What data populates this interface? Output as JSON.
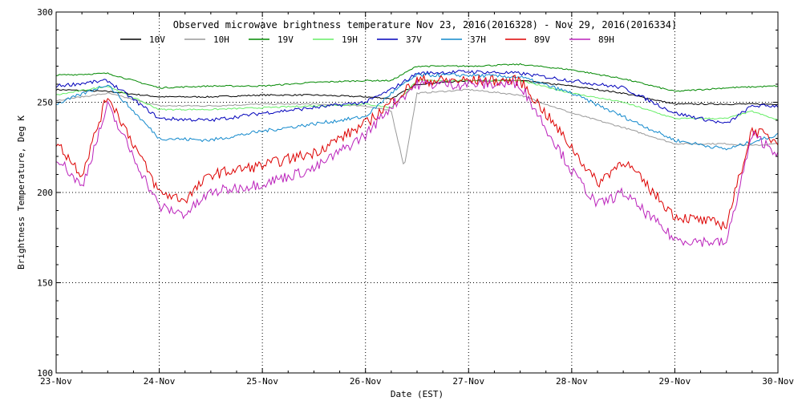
{
  "chart_data": {
    "type": "line",
    "title": "Observed microwave brightness temperature Nov 23, 2016(2016328) - Nov 29, 2016(2016334)",
    "xlabel": "Date (EST)",
    "ylabel": "Brightness Temperature, Deg K",
    "x_tick_labels": [
      "23-Nov",
      "24-Nov",
      "25-Nov",
      "26-Nov",
      "27-Nov",
      "28-Nov",
      "29-Nov",
      "30-Nov"
    ],
    "y_ticks": [
      100,
      150,
      200,
      250,
      300
    ],
    "ylim": [
      100,
      300
    ],
    "grid": true,
    "legend_position": "top",
    "series": [
      {
        "name": "10V",
        "color": "#000000",
        "x": [
          "23-Nov 00:00",
          "23-Nov 12:00",
          "24-Nov 00:00",
          "24-Nov 12:00",
          "25-Nov 00:00",
          "25-Nov 12:00",
          "26-Nov 00:00",
          "26-Nov 06:00",
          "26-Nov 12:00",
          "27-Nov 00:00",
          "27-Nov 12:00",
          "28-Nov 00:00",
          "28-Nov 12:00",
          "29-Nov 00:00",
          "29-Nov 12:00",
          "29-Nov 18:00",
          "30-Nov 00:00"
        ],
        "y": [
          257,
          256,
          253,
          253,
          254,
          254,
          253,
          252,
          260,
          262,
          262,
          259,
          255,
          249,
          249,
          249,
          249
        ]
      },
      {
        "name": "10H",
        "color": "#999999",
        "x": [
          "23-Nov 00:00",
          "23-Nov 12:00",
          "24-Nov 00:00",
          "24-Nov 12:00",
          "25-Nov 00:00",
          "25-Nov 12:00",
          "26-Nov 00:00",
          "26-Nov 06:00",
          "26-Nov 09:00",
          "26-Nov 12:00",
          "27-Nov 00:00",
          "27-Nov 12:00",
          "28-Nov 00:00",
          "28-Nov 12:00",
          "29-Nov 00:00",
          "29-Nov 12:00",
          "29-Nov 18:00",
          "30-Nov 00:00"
        ],
        "y": [
          251,
          255,
          248,
          248,
          249,
          249,
          248,
          245,
          214,
          255,
          257,
          254,
          244,
          236,
          227,
          227,
          226,
          227
        ]
      },
      {
        "name": "19V",
        "color": "#008800",
        "x": [
          "23-Nov 00:00",
          "23-Nov 12:00",
          "24-Nov 00:00",
          "24-Nov 12:00",
          "25-Nov 00:00",
          "25-Nov 12:00",
          "26-Nov 00:00",
          "26-Nov 06:00",
          "26-Nov 12:00",
          "27-Nov 00:00",
          "27-Nov 12:00",
          "28-Nov 00:00",
          "28-Nov 12:00",
          "29-Nov 00:00",
          "29-Nov 12:00",
          "30-Nov 00:00"
        ],
        "y": [
          265,
          266,
          258,
          259,
          259,
          261,
          262,
          262,
          270,
          270,
          271,
          268,
          263,
          256,
          258,
          259
        ]
      },
      {
        "name": "19H",
        "color": "#66ee66",
        "x": [
          "23-Nov 00:00",
          "23-Nov 12:00",
          "24-Nov 00:00",
          "24-Nov 12:00",
          "25-Nov 00:00",
          "25-Nov 12:00",
          "26-Nov 00:00",
          "26-Nov 06:00",
          "26-Nov 12:00",
          "27-Nov 00:00",
          "27-Nov 12:00",
          "28-Nov 00:00",
          "28-Nov 12:00",
          "29-Nov 00:00",
          "29-Nov 12:00",
          "29-Nov 18:00",
          "30-Nov 00:00"
        ],
        "y": [
          254,
          259,
          246,
          246,
          247,
          248,
          249,
          247,
          262,
          262,
          262,
          255,
          250,
          241,
          241,
          245,
          240
        ]
      },
      {
        "name": "37V",
        "color": "#0000bb",
        "x": [
          "23-Nov 00:00",
          "23-Nov 12:00",
          "24-Nov 00:00",
          "24-Nov 12:00",
          "25-Nov 00:00",
          "25-Nov 12:00",
          "26-Nov 00:00",
          "26-Nov 06:00",
          "26-Nov 12:00",
          "27-Nov 00:00",
          "27-Nov 12:00",
          "28-Nov 00:00",
          "28-Nov 12:00",
          "29-Nov 00:00",
          "29-Nov 12:00",
          "29-Nov 18:00",
          "30-Nov 00:00"
        ],
        "y": [
          259,
          262,
          241,
          240,
          244,
          247,
          250,
          257,
          266,
          267,
          266,
          262,
          258,
          244,
          238,
          248,
          248
        ]
      },
      {
        "name": "37H",
        "color": "#1188cc",
        "x": [
          "23-Nov 00:00",
          "23-Nov 12:00",
          "24-Nov 00:00",
          "24-Nov 12:00",
          "25-Nov 00:00",
          "25-Nov 12:00",
          "26-Nov 00:00",
          "26-Nov 06:00",
          "26-Nov 12:00",
          "27-Nov 00:00",
          "27-Nov 12:00",
          "28-Nov 00:00",
          "28-Nov 12:00",
          "29-Nov 00:00",
          "29-Nov 12:00",
          "29-Nov 18:00",
          "30-Nov 00:00"
        ],
        "y": [
          249,
          260,
          230,
          229,
          234,
          238,
          242,
          255,
          265,
          265,
          264,
          255,
          242,
          229,
          224,
          228,
          232
        ]
      },
      {
        "name": "89V",
        "color": "#dd0000",
        "x": [
          "23-Nov 00:00",
          "23-Nov 06:00",
          "23-Nov 12:00",
          "24-Nov 00:00",
          "24-Nov 06:00",
          "24-Nov 12:00",
          "25-Nov 00:00",
          "25-Nov 12:00",
          "26-Nov 00:00",
          "26-Nov 06:00",
          "26-Nov 12:00",
          "27-Nov 00:00",
          "27-Nov 12:00",
          "28-Nov 00:00",
          "28-Nov 06:00",
          "28-Nov 12:00",
          "29-Nov 00:00",
          "29-Nov 12:00",
          "29-Nov 18:00",
          "30-Nov 00:00"
        ],
        "y": [
          228,
          210,
          254,
          200,
          196,
          210,
          215,
          222,
          238,
          250,
          262,
          262,
          262,
          225,
          205,
          218,
          187,
          182,
          235,
          228
        ]
      },
      {
        "name": "89H",
        "color": "#bb22bb",
        "x": [
          "23-Nov 00:00",
          "23-Nov 06:00",
          "23-Nov 12:00",
          "24-Nov 00:00",
          "24-Nov 06:00",
          "24-Nov 12:00",
          "25-Nov 00:00",
          "25-Nov 12:00",
          "26-Nov 00:00",
          "26-Nov 06:00",
          "26-Nov 12:00",
          "27-Nov 00:00",
          "27-Nov 12:00",
          "28-Nov 00:00",
          "28-Nov 06:00",
          "28-Nov 12:00",
          "29-Nov 00:00",
          "29-Nov 12:00",
          "29-Nov 18:00",
          "30-Nov 00:00"
        ],
        "y": [
          220,
          203,
          248,
          192,
          188,
          200,
          205,
          213,
          232,
          248,
          260,
          260,
          260,
          212,
          193,
          200,
          174,
          172,
          232,
          222
        ]
      }
    ]
  }
}
